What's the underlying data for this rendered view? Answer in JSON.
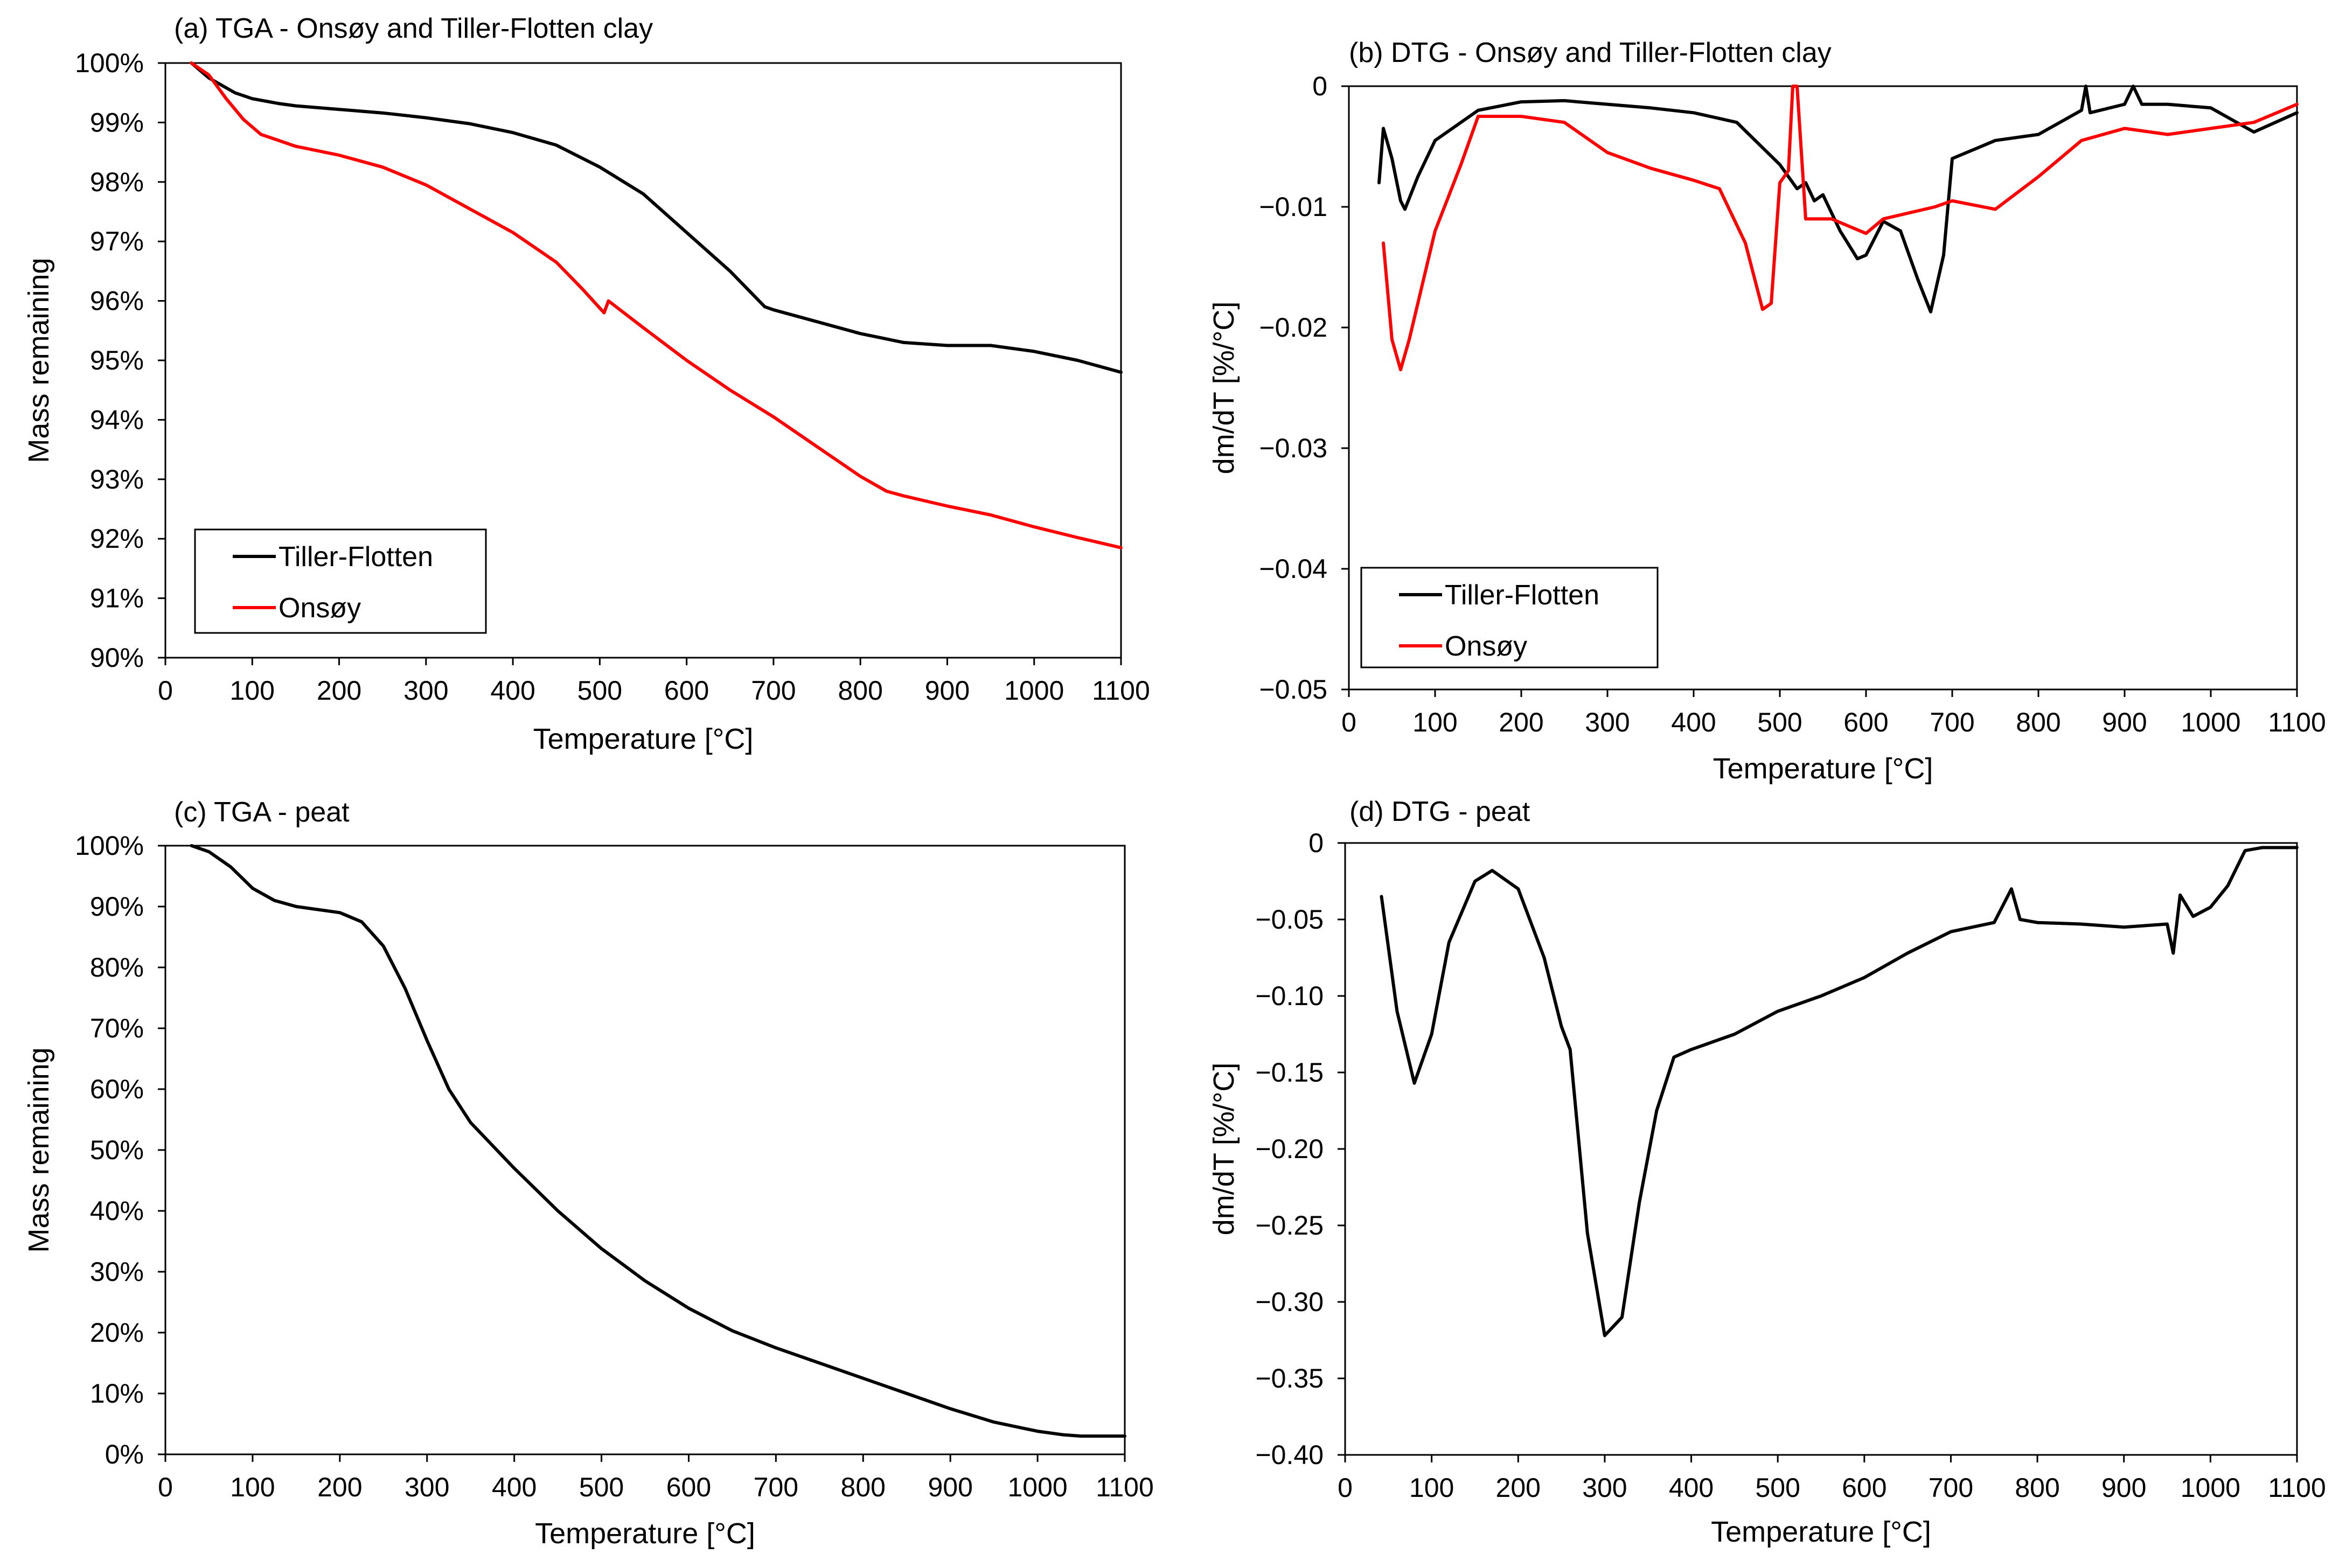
{
  "figure": {
    "colors": {
      "black": "#000000",
      "red": "#ff0000",
      "frame": "#000000"
    }
  },
  "chart_data": [
    {
      "id": "a",
      "type": "line",
      "title": "(a) TGA - Onsøy and Tiller-Flotten clay",
      "xlabel": "Temperature [°C]",
      "ylabel": "Mass remaining",
      "xlim": [
        0,
        1100
      ],
      "ylim": [
        90,
        100
      ],
      "xticks": [
        0,
        100,
        200,
        300,
        400,
        500,
        600,
        700,
        800,
        900,
        1000,
        1100
      ],
      "xtick_labels": [
        "0",
        "100",
        "200",
        "300",
        "400",
        "500",
        "600",
        "700",
        "800",
        "900",
        "1000",
        "1100"
      ],
      "yticks": [
        90,
        91,
        92,
        93,
        94,
        95,
        96,
        97,
        98,
        99,
        100
      ],
      "ytick_labels": [
        "90%",
        "91%",
        "92%",
        "93%",
        "94%",
        "95%",
        "96%",
        "97%",
        "98%",
        "99%",
        "100%"
      ],
      "grid": false,
      "legend": "bottom-left",
      "series": [
        {
          "name": "Tiller-Flotten",
          "color": "#000000",
          "x": [
            30,
            50,
            80,
            100,
            130,
            150,
            200,
            250,
            300,
            350,
            400,
            450,
            500,
            550,
            600,
            650,
            690,
            700,
            750,
            800,
            850,
            900,
            950,
            1000,
            1050,
            1100
          ],
          "y": [
            100,
            99.75,
            99.5,
            99.4,
            99.32,
            99.28,
            99.22,
            99.16,
            99.08,
            98.98,
            98.83,
            98.62,
            98.25,
            97.8,
            97.15,
            96.5,
            95.9,
            95.85,
            95.65,
            95.45,
            95.3,
            95.25,
            95.25,
            95.15,
            95.0,
            94.8
          ]
        },
        {
          "name": "Onsøy",
          "color": "#ff0000",
          "x": [
            30,
            50,
            70,
            90,
            110,
            150,
            200,
            250,
            300,
            350,
            400,
            450,
            480,
            505,
            510,
            550,
            600,
            650,
            700,
            750,
            800,
            830,
            850,
            900,
            950,
            1000,
            1050,
            1100
          ],
          "y": [
            100,
            99.8,
            99.4,
            99.05,
            98.8,
            98.6,
            98.45,
            98.25,
            97.95,
            97.55,
            97.15,
            96.65,
            96.2,
            95.8,
            96.0,
            95.55,
            95.0,
            94.5,
            94.05,
            93.55,
            93.05,
            92.8,
            92.72,
            92.55,
            92.4,
            92.2,
            92.02,
            91.85
          ]
        }
      ]
    },
    {
      "id": "b",
      "type": "line",
      "title": "(b) DTG - Onsøy and Tiller-Flotten clay",
      "xlabel": "Temperature [°C]",
      "ylabel": "dm/dT [%/°C]",
      "xlim": [
        0,
        1100
      ],
      "ylim": [
        -0.05,
        0
      ],
      "xticks": [
        0,
        100,
        200,
        300,
        400,
        500,
        600,
        700,
        800,
        900,
        1000,
        1100
      ],
      "xtick_labels": [
        "0",
        "100",
        "200",
        "300",
        "400",
        "500",
        "600",
        "700",
        "800",
        "900",
        "1000",
        "1100"
      ],
      "yticks": [
        -0.05,
        -0.04,
        -0.03,
        -0.02,
        -0.01,
        0
      ],
      "ytick_labels": [
        "−0.05",
        "−0.04",
        "−0.03",
        "−0.02",
        "−0.01",
        "0"
      ],
      "grid": false,
      "legend": "bottom-left",
      "series": [
        {
          "name": "Tiller-Flotten",
          "color": "#000000",
          "x": [
            35,
            40,
            50,
            60,
            65,
            80,
            100,
            150,
            200,
            250,
            300,
            350,
            400,
            450,
            500,
            520,
            530,
            540,
            550,
            570,
            590,
            600,
            620,
            640,
            660,
            675,
            690,
            700,
            750,
            800,
            850,
            855,
            860,
            900,
            910,
            920,
            950,
            1000,
            1050,
            1100
          ],
          "y": [
            -0.008,
            -0.0035,
            -0.006,
            -0.0095,
            -0.0102,
            -0.0075,
            -0.0045,
            -0.002,
            -0.0013,
            -0.0012,
            -0.0015,
            -0.0018,
            -0.0022,
            -0.003,
            -0.0065,
            -0.0085,
            -0.008,
            -0.0095,
            -0.009,
            -0.012,
            -0.0143,
            -0.014,
            -0.0112,
            -0.012,
            -0.016,
            -0.0187,
            -0.014,
            -0.006,
            -0.0045,
            -0.004,
            -0.002,
            0.0,
            -0.0022,
            -0.0015,
            0.0,
            -0.0015,
            -0.0015,
            -0.0018,
            -0.0038,
            -0.0022
          ]
        },
        {
          "name": "Onsøy",
          "color": "#ff0000",
          "x": [
            40,
            50,
            60,
            70,
            100,
            130,
            140,
            150,
            200,
            250,
            300,
            350,
            400,
            430,
            460,
            480,
            490,
            500,
            510,
            515,
            520,
            530,
            560,
            600,
            620,
            650,
            680,
            700,
            750,
            800,
            850,
            900,
            950,
            1000,
            1050,
            1100
          ],
          "y": [
            -0.013,
            -0.021,
            -0.0235,
            -0.021,
            -0.012,
            -0.0065,
            -0.0045,
            -0.0025,
            -0.0025,
            -0.003,
            -0.0055,
            -0.0068,
            -0.0078,
            -0.0085,
            -0.013,
            -0.0185,
            -0.018,
            -0.008,
            -0.007,
            0.0,
            0.0,
            -0.011,
            -0.011,
            -0.0122,
            -0.011,
            -0.0105,
            -0.01,
            -0.0095,
            -0.0102,
            -0.0075,
            -0.0045,
            -0.0035,
            -0.004,
            -0.0035,
            -0.003,
            -0.0015
          ]
        }
      ]
    },
    {
      "id": "c",
      "type": "line",
      "title": "(c) TGA - peat",
      "xlabel": "Temperature [°C]",
      "ylabel": "Mass remaining",
      "xlim": [
        0,
        1100
      ],
      "ylim": [
        0,
        100
      ],
      "xticks": [
        0,
        100,
        200,
        300,
        400,
        500,
        600,
        700,
        800,
        900,
        1000,
        1100
      ],
      "xtick_labels": [
        "0",
        "100",
        "200",
        "300",
        "400",
        "500",
        "600",
        "700",
        "800",
        "900",
        "1000",
        "1100"
      ],
      "yticks": [
        0,
        10,
        20,
        30,
        40,
        50,
        60,
        70,
        80,
        90,
        100
      ],
      "ytick_labels": [
        "0%",
        "10%",
        "20%",
        "30%",
        "40%",
        "50%",
        "60%",
        "70%",
        "80%",
        "90%",
        "100%"
      ],
      "grid": false,
      "legend": "none",
      "series": [
        {
          "name": "peat",
          "color": "#000000",
          "x": [
            30,
            50,
            75,
            100,
            125,
            150,
            200,
            225,
            250,
            275,
            300,
            325,
            350,
            400,
            450,
            500,
            550,
            600,
            650,
            700,
            750,
            800,
            850,
            900,
            950,
            1000,
            1030,
            1050,
            1100
          ],
          "y": [
            100,
            99,
            96.5,
            93,
            91,
            90,
            89,
            87.5,
            83.5,
            76.5,
            68,
            60,
            54.5,
            47,
            40,
            33.8,
            28.5,
            24,
            20.3,
            17.5,
            15,
            12.5,
            10,
            7.5,
            5.3,
            3.8,
            3.2,
            3.0,
            3.0
          ]
        }
      ]
    },
    {
      "id": "d",
      "type": "line",
      "title": "(d) DTG - peat",
      "xlabel": "Temperature [°C]",
      "ylabel": "dm/dT [%/°C]",
      "xlim": [
        0,
        1100
      ],
      "ylim": [
        -0.4,
        0
      ],
      "xticks": [
        0,
        100,
        200,
        300,
        400,
        500,
        600,
        700,
        800,
        900,
        1000,
        1100
      ],
      "xtick_labels": [
        "0",
        "100",
        "200",
        "300",
        "400",
        "500",
        "600",
        "700",
        "800",
        "900",
        "1000",
        "1100"
      ],
      "yticks": [
        -0.4,
        -0.35,
        -0.3,
        -0.25,
        -0.2,
        -0.15,
        -0.1,
        -0.05,
        0
      ],
      "ytick_labels": [
        "−0.40",
        "−0.35",
        "−0.30",
        "−0.25",
        "−0.20",
        "−0.15",
        "−0.10",
        "−0.05",
        "0"
      ],
      "grid": false,
      "legend": "none",
      "series": [
        {
          "name": "peat",
          "color": "#000000",
          "x": [
            42,
            60,
            80,
            100,
            120,
            150,
            170,
            200,
            230,
            250,
            260,
            280,
            300,
            320,
            340,
            360,
            380,
            400,
            450,
            500,
            550,
            600,
            650,
            700,
            750,
            770,
            780,
            800,
            850,
            900,
            950,
            957,
            965,
            980,
            1000,
            1020,
            1040,
            1060,
            1100
          ],
          "y": [
            -0.035,
            -0.11,
            -0.157,
            -0.125,
            -0.065,
            -0.025,
            -0.018,
            -0.03,
            -0.075,
            -0.12,
            -0.135,
            -0.255,
            -0.322,
            -0.31,
            -0.235,
            -0.175,
            -0.14,
            -0.135,
            -0.125,
            -0.11,
            -0.1,
            -0.088,
            -0.072,
            -0.058,
            -0.052,
            -0.03,
            -0.05,
            -0.052,
            -0.053,
            -0.055,
            -0.053,
            -0.072,
            -0.034,
            -0.048,
            -0.042,
            -0.028,
            -0.005,
            -0.003,
            -0.003
          ]
        }
      ]
    }
  ]
}
